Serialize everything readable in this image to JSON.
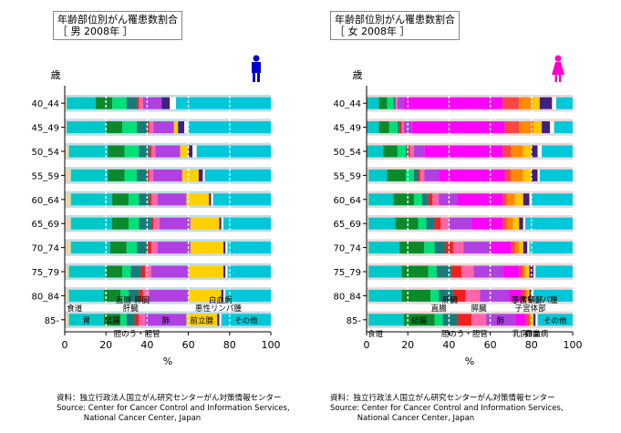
{
  "chart_data": [
    {
      "type": "bar",
      "stacked": true,
      "orientation": "horizontal",
      "title": "年齢部位別がん罹患数割合",
      "subtitle": "［ 男 2008年 ］",
      "ylabel": "歳",
      "xlabel": "%",
      "xlim": [
        0,
        100
      ],
      "xticks": [
        "0",
        "20",
        "40",
        "60",
        "80",
        "100"
      ],
      "categories": [
        "40_44",
        "45_49",
        "50_54",
        "55_59",
        "60_64",
        "65_69",
        "70_74",
        "75_79",
        "80_84",
        "85-"
      ],
      "series": [
        {
          "name": "食道",
          "color": "#e8d8b0",
          "values": [
            1,
            1,
            2,
            3,
            3,
            3,
            3,
            2,
            2,
            2
          ]
        },
        {
          "name": "胃",
          "color": "#00c8c8",
          "values": [
            14,
            19,
            19,
            18,
            20,
            20,
            19,
            18,
            17,
            17
          ]
        },
        {
          "name": "結腸",
          "color": "#0a8a2a",
          "values": [
            8,
            8,
            8,
            8,
            8,
            8,
            8,
            8,
            8,
            8
          ]
        },
        {
          "name": "直腸",
          "color": "#00e07a",
          "values": [
            7,
            7,
            7,
            6,
            5,
            5,
            5,
            4,
            4,
            3
          ]
        },
        {
          "name": "肝臓",
          "color": "#1a7a7a",
          "values": [
            5,
            5,
            5,
            5,
            5,
            6,
            5,
            5,
            5,
            4
          ]
        },
        {
          "name": "胆のう・胆管",
          "color": "#f02020",
          "values": [
            1,
            1,
            1,
            1,
            1,
            1,
            2,
            2,
            2,
            2
          ]
        },
        {
          "name": "膵臓",
          "color": "#ff66aa",
          "values": [
            2,
            2,
            2,
            2,
            3,
            3,
            3,
            3,
            3,
            3
          ]
        },
        {
          "name": "肺",
          "color": "#b040e0",
          "values": [
            9,
            10,
            12,
            14,
            14,
            15,
            16,
            18,
            19,
            20
          ]
        },
        {
          "name": "前立腺",
          "color": "#ffd000",
          "values": [
            0,
            2,
            4,
            8,
            11,
            14,
            16,
            17,
            16,
            15
          ]
        },
        {
          "name": "悪性リンパ腫",
          "color": "#402080",
          "values": [
            4,
            3,
            2,
            2,
            1,
            1,
            1,
            1,
            1,
            1
          ]
        },
        {
          "name": "白血病",
          "color": "#ffffff",
          "values": [
            3,
            2,
            2,
            1,
            1,
            1,
            1,
            1,
            1,
            1
          ]
        },
        {
          "name": "その他",
          "color": "#00c8d8",
          "values": [
            46,
            40,
            36,
            32,
            28,
            23,
            21,
            21,
            22,
            24
          ]
        }
      ],
      "legend_labels_top": [
        "食道",
        "直腸",
        "肝臓",
        "膵臓",
        "悪性リンパ腫",
        "白血病"
      ],
      "legend_labels_bar": [
        "胃",
        "結腸",
        "肺",
        "前立腺",
        "その他"
      ],
      "legend_labels_bottom": [
        "胆のう・胆管"
      ],
      "icon": "male-figure-icon",
      "source": "資料：独立行政法人国立がん研究センターがん対策情報センター\nSource: Center for Cancer Control and Information Services,\n           National Cancer Center, Japan"
    },
    {
      "type": "bar",
      "stacked": true,
      "orientation": "horizontal",
      "title": "年齢部位別がん罹患数割合",
      "subtitle": "［ 女 2008年 ］",
      "ylabel": "歳",
      "xlabel": "%",
      "xlim": [
        0,
        100
      ],
      "xticks": [
        "0",
        "20",
        "40",
        "60",
        "80",
        "100"
      ],
      "categories": [
        "40_44",
        "45_49",
        "50_54",
        "55_59",
        "60_64",
        "65_69",
        "70_74",
        "75_79",
        "80_84",
        "85-"
      ],
      "series": [
        {
          "name": "食道",
          "color": "#e8d8b0",
          "values": [
            0,
            0,
            0,
            1,
            1,
            1,
            1,
            1,
            1,
            1
          ]
        },
        {
          "name": "胃",
          "color": "#00c8c8",
          "values": [
            6,
            6,
            8,
            9,
            12,
            13,
            15,
            16,
            16,
            17
          ]
        },
        {
          "name": "結腸",
          "color": "#0a8a2a",
          "values": [
            4,
            5,
            7,
            9,
            10,
            11,
            12,
            13,
            14,
            15
          ]
        },
        {
          "name": "直腸",
          "color": "#00e07a",
          "values": [
            3,
            4,
            4,
            4,
            4,
            4,
            5,
            4,
            4,
            4
          ]
        },
        {
          "name": "肝臓",
          "color": "#1a7a7a",
          "values": [
            1,
            1,
            1,
            2,
            3,
            4,
            5,
            7,
            7,
            7
          ]
        },
        {
          "name": "胆のう・胆管",
          "color": "#f02020",
          "values": [
            0,
            1,
            1,
            1,
            2,
            3,
            4,
            5,
            6,
            7
          ]
        },
        {
          "name": "膵臓",
          "color": "#ff66aa",
          "values": [
            1,
            1,
            2,
            2,
            3,
            4,
            5,
            6,
            7,
            7
          ]
        },
        {
          "name": "肺",
          "color": "#b040e0",
          "values": [
            3,
            4,
            5,
            7,
            9,
            11,
            13,
            14,
            14,
            14
          ]
        },
        {
          "name": "乳房",
          "color": "#ff00ff",
          "values": [
            48,
            45,
            38,
            32,
            22,
            15,
            10,
            8,
            6,
            5
          ]
        },
        {
          "name": "子宮頸部",
          "color": "#ff4444",
          "values": [
            8,
            7,
            4,
            3,
            2,
            2,
            2,
            2,
            2,
            2
          ]
        },
        {
          "name": "子宮体部",
          "color": "#ff8a00",
          "values": [
            6,
            7,
            6,
            6,
            4,
            3,
            2,
            1,
            1,
            1
          ]
        },
        {
          "name": "卵巣",
          "color": "#ffc800",
          "values": [
            4,
            4,
            4,
            4,
            4,
            3,
            2,
            2,
            1,
            1
          ]
        },
        {
          "name": "悪性リンパ腫",
          "color": "#402080",
          "values": [
            6,
            4,
            3,
            3,
            3,
            2,
            2,
            2,
            1,
            1
          ]
        },
        {
          "name": "白血病",
          "color": "#ffffff",
          "values": [
            2,
            2,
            2,
            1,
            1,
            1,
            1,
            1,
            1,
            1
          ]
        },
        {
          "name": "その他",
          "color": "#00c8d8",
          "values": [
            8,
            9,
            15,
            16,
            20,
            23,
            21,
            18,
            19,
            17
          ]
        }
      ],
      "legend_labels_top": [
        "子宮体部",
        "子宮頸部",
        "直腸",
        "肝臓",
        "膵臓",
        "悪性リンパ腫"
      ],
      "legend_labels_bar": [
        "結腸",
        "肺",
        "その他"
      ],
      "legend_labels_bottom": [
        "食道",
        "胆のう・胆管",
        "乳房",
        "卵巣",
        "白血病"
      ],
      "icon": "female-figure-icon",
      "source": "資料：独立行政法人国立がん研究センターがん対策情報センター\nSource: Center for Cancer Control and Information Services,\n           National Cancer Center, Japan"
    }
  ]
}
